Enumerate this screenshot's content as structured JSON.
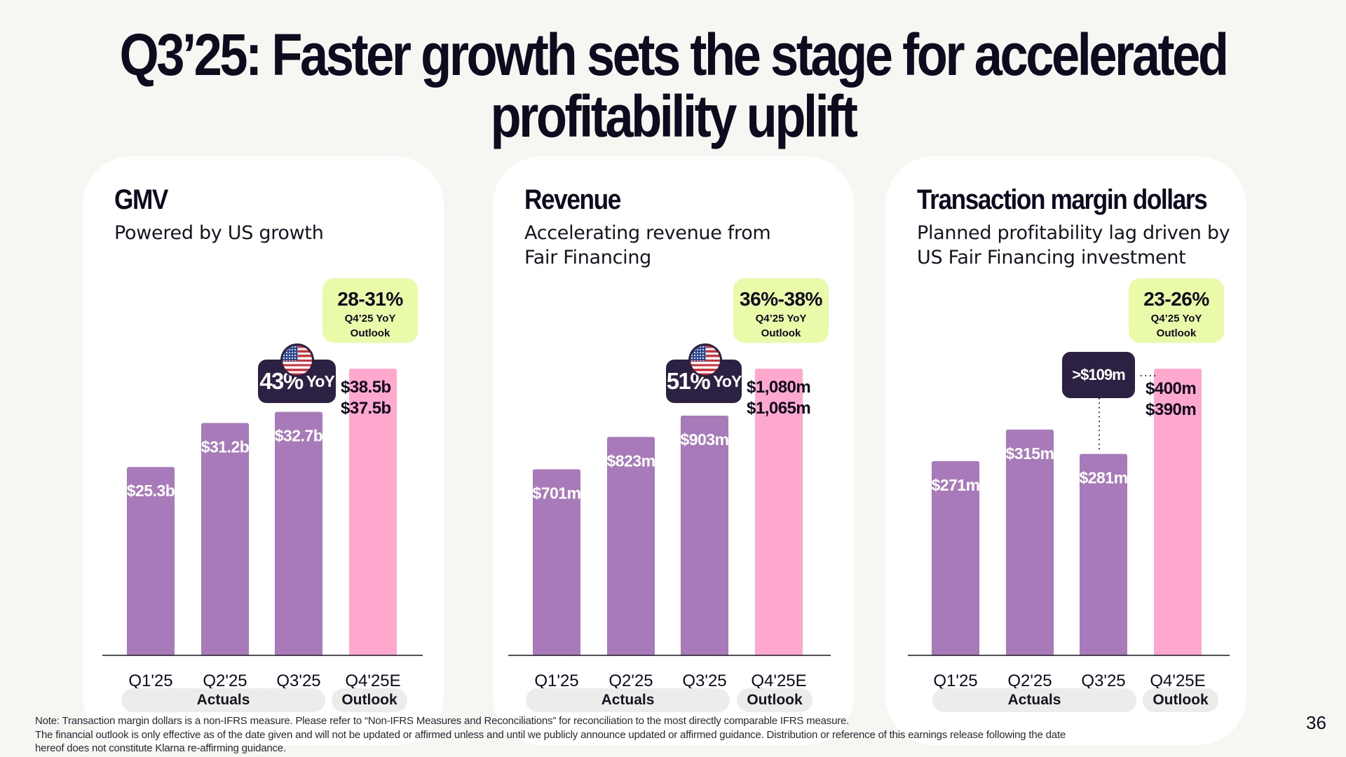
{
  "page": {
    "title_line1": "Q3’25: Faster growth sets the stage for accelerated",
    "title_line2": "profitability uplift",
    "page_number": "36",
    "footnote": [
      "Note: Transaction margin dollars is a non-IFRS measure. Please refer to “Non-IFRS Measures and Reconciliations” for reconciliation to the most directly comparable IFRS measure.",
      "The financial outlook is only effective as of the date given and will not be updated or affirmed unless and until we publicly announce updated or affirmed guidance. Distribution or reference of this earnings release following the date",
      "hereof does not constitute Klarna re-affirming guidance."
    ]
  },
  "colors": {
    "actual_bar": "#a87ab9",
    "outlook_bar": "#ffa8cd",
    "outlook_box": "#e9fba8",
    "badge": "#2c2142",
    "text": "#0f0a1e"
  },
  "cards": [
    {
      "title": "GMV",
      "subtitle": "Powered by US growth",
      "outlook_pct": "28-31%",
      "outlook_label1": "Q4’25 YoY",
      "outlook_label2": "Outlook",
      "badge_big": "43%",
      "badge_small": "YoY",
      "badge_icon": "us-flag-icon",
      "q4_high_label": "$38.5b",
      "q4_low_label": "$37.5b",
      "group_actuals": "Actuals",
      "group_outlook": "Outlook"
    },
    {
      "title": "Revenue",
      "subtitle": "Accelerating revenue from Fair Financing",
      "outlook_pct": "36%-38%",
      "outlook_label1": "Q4’25 YoY",
      "outlook_label2": "Outlook",
      "badge_big": "51%",
      "badge_small": "YoY",
      "badge_icon": "us-flag-icon",
      "q4_high_label": "$1,080m",
      "q4_low_label": "$1,065m",
      "group_actuals": "Actuals",
      "group_outlook": "Outlook"
    },
    {
      "title": "Transaction margin dollars",
      "subtitle": "Planned profitability lag driven by US Fair Financing investment",
      "outlook_pct": "23-26%",
      "outlook_label1": "Q4’25 YoY",
      "outlook_label2": "Outlook",
      "badge_text": ">$109m",
      "q4_high_label": "$400m",
      "q4_low_label": "$390m",
      "group_actuals": "Actuals",
      "group_outlook": "Outlook"
    }
  ],
  "chart_data": [
    {
      "type": "bar",
      "title": "GMV",
      "unit": "$b",
      "categories": [
        "Q1'25",
        "Q2'25",
        "Q3'25",
        "Q4'25E"
      ],
      "values": [
        25.3,
        31.2,
        32.7,
        38.5
      ],
      "value_labels": [
        "$25.3b",
        "$31.2b",
        "$32.7b",
        null
      ],
      "q4_range": [
        37.5,
        38.5
      ],
      "kinds": [
        "actual",
        "actual",
        "actual",
        "outlook"
      ],
      "ylim": [
        0,
        38.5
      ],
      "annotation": "43% YoY (US)",
      "grid": false
    },
    {
      "type": "bar",
      "title": "Revenue",
      "unit": "$m",
      "categories": [
        "Q1'25",
        "Q2'25",
        "Q3'25",
        "Q4'25E"
      ],
      "values": [
        701,
        823,
        903,
        1080
      ],
      "value_labels": [
        "$701m",
        "$823m",
        "$903m",
        null
      ],
      "q4_range": [
        1065,
        1080
      ],
      "kinds": [
        "actual",
        "actual",
        "actual",
        "outlook"
      ],
      "ylim": [
        0,
        1080
      ],
      "annotation": "51% YoY (US)",
      "grid": false
    },
    {
      "type": "bar",
      "title": "Transaction margin dollars",
      "unit": "$m",
      "categories": [
        "Q1'25",
        "Q2'25",
        "Q3'25",
        "Q4'25E"
      ],
      "values": [
        271,
        315,
        281,
        400
      ],
      "value_labels": [
        "$271m",
        "$315m",
        "$281m",
        null
      ],
      "q4_range": [
        390,
        400
      ],
      "kinds": [
        "actual",
        "actual",
        "actual",
        "outlook"
      ],
      "ylim": [
        0,
        400
      ],
      "annotation": ">$109m",
      "grid": false
    }
  ]
}
